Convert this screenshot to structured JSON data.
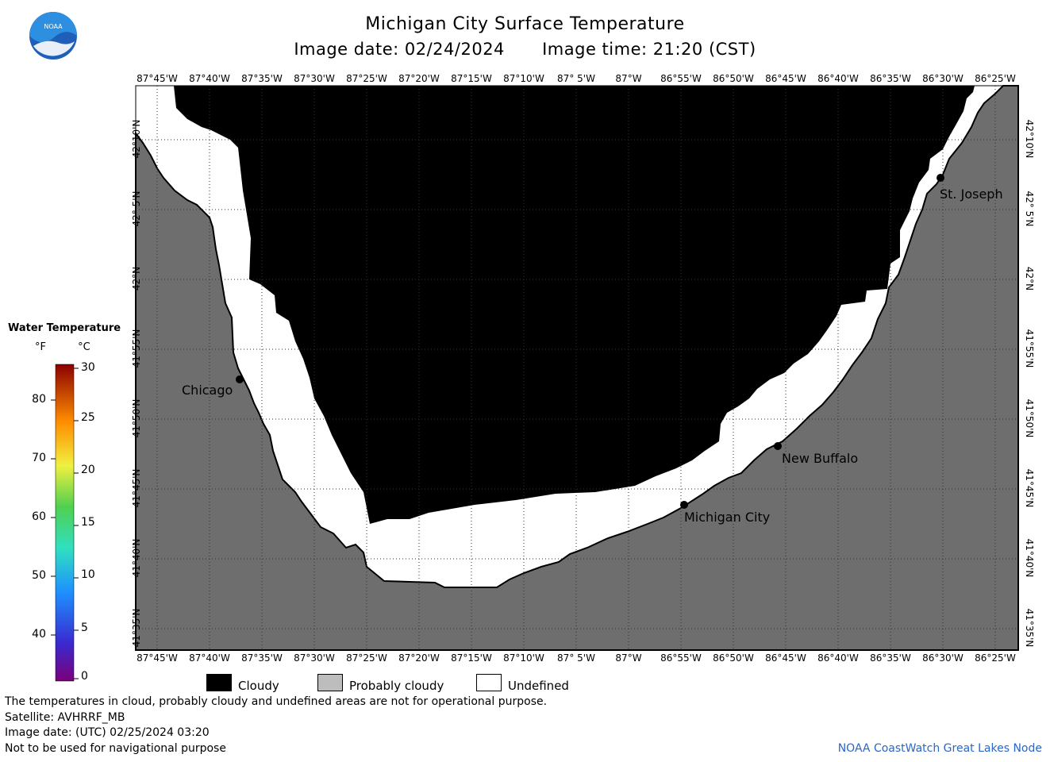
{
  "header": {
    "title": "Michigan City Surface Temperature",
    "image_date": "Image date: 02/24/2024",
    "image_time": "Image time: 21:20 (CST)"
  },
  "logo": {
    "text": "NOAA"
  },
  "axes": {
    "longitude_labels": [
      "87°45'W",
      "87°40'W",
      "87°35'W",
      "87°30'W",
      "87°25'W",
      "87°20'W",
      "87°15'W",
      "87°10'W",
      "87° 5'W",
      "87°W",
      "86°55'W",
      "86°50'W",
      "86°45'W",
      "86°40'W",
      "86°35'W",
      "86°30'W",
      "86°25'W"
    ],
    "latitude_labels": [
      "42°10'N",
      "42° 5'N",
      "42°N",
      "41°55'N",
      "41°50'N",
      "41°45'N",
      "41°40'N",
      "41°35'N"
    ]
  },
  "places": [
    {
      "name": "Chicago"
    },
    {
      "name": "St. Joseph"
    },
    {
      "name": "New Buffalo"
    },
    {
      "name": "Michigan City"
    }
  ],
  "legend": {
    "title": "Water Temperature",
    "unit_f": "°F",
    "unit_c": "°C",
    "f_ticks": [
      "80",
      "70",
      "60",
      "50",
      "40"
    ],
    "c_ticks": [
      "30",
      "25",
      "20",
      "15",
      "10",
      "5",
      "0"
    ]
  },
  "key": {
    "cloudy": "Cloudy",
    "probably_cloudy": "Probably cloudy",
    "undefined": "Undefined",
    "cloudy_color": "#000000",
    "probably_cloudy_color": "#bdbdbd",
    "undefined_color": "#ffffff",
    "land_color": "#6e6e6e"
  },
  "footer": {
    "note": "The temperatures in cloud, probably cloudy and undefined areas are not for operational purpose.",
    "satellite": "Satellite: AVHRRF_MB",
    "utc_date": "Image date: (UTC) 02/25/2024  03:20",
    "nav_warning": "Not to be used for navigational purpose",
    "credit": "NOAA CoastWatch Great Lakes Node"
  }
}
